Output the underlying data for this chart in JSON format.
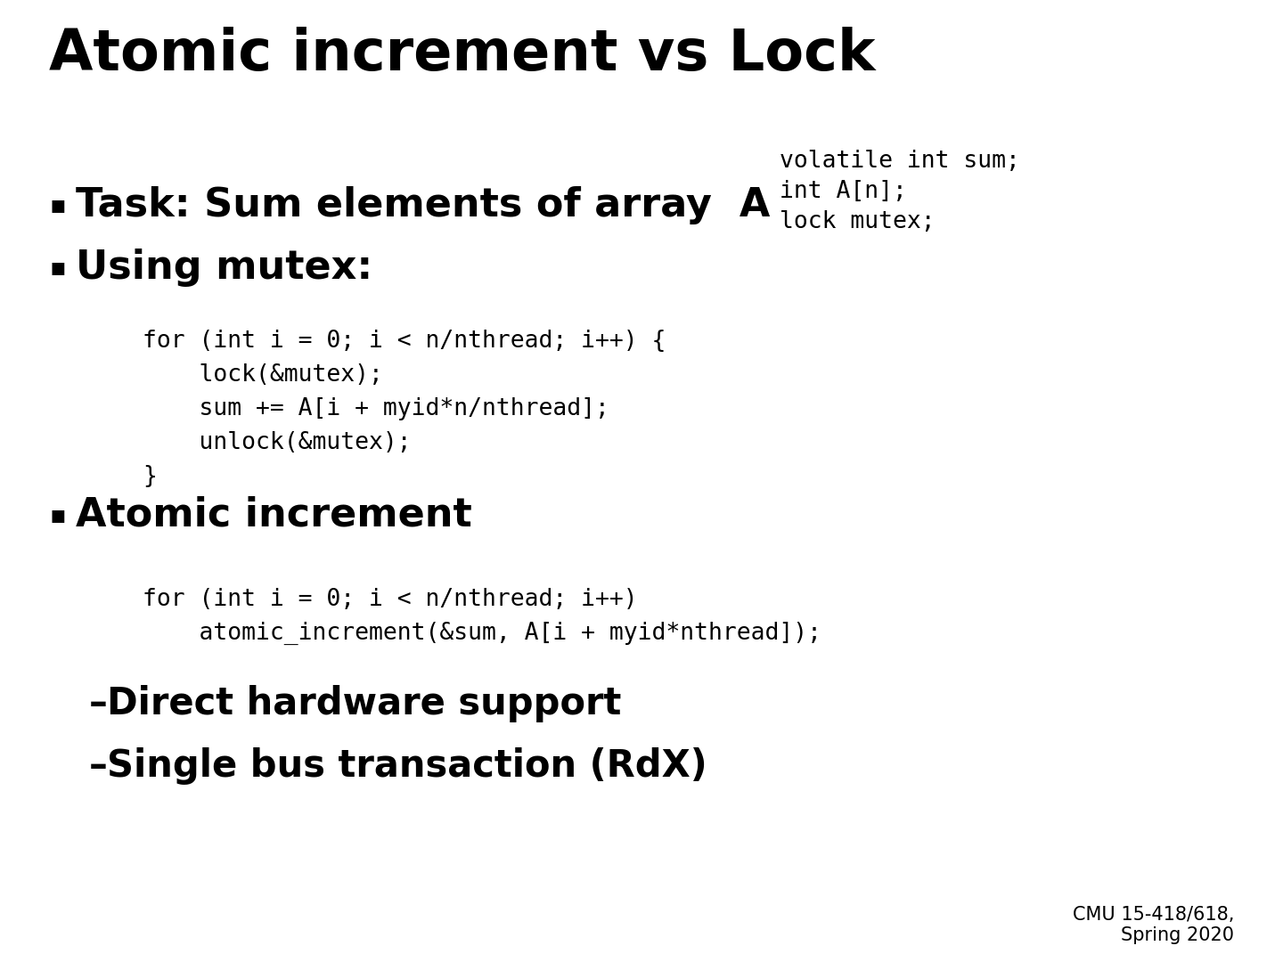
{
  "title": "Atomic increment vs Lock",
  "title_fontsize": 46,
  "bg_color": "#ffffff",
  "text_color": "#000000",
  "bullet_symbol": "▪",
  "bullet1_text": "Task: Sum elements of array  A",
  "bullet2_text": "Using mutex:",
  "bullet3_text": "Atomic increment",
  "bullet_fontsize": 32,
  "code1_lines": [
    "for (int i = 0; i < n/nthread; i++) {",
    "    lock(&mutex);",
    "    sum += A[i + myid*n/nthread];",
    "    unlock(&mutex);",
    "}"
  ],
  "code2_lines": [
    "for (int i = 0; i < n/nthread; i++)",
    "    atomic_increment(&sum, A[i + myid*nthread]);"
  ],
  "code_fontsize": 19,
  "side_lines": [
    "volatile int sum;",
    "int A[n];",
    "lock mutex;"
  ],
  "side_fontsize": 19,
  "sub1_text": "Direct hardware support",
  "sub2_text": "Single bus transaction (RdX)",
  "sub_fontsize": 30,
  "footer": "CMU 15-418/618,\nSpring 2020",
  "footer_fontsize": 15
}
